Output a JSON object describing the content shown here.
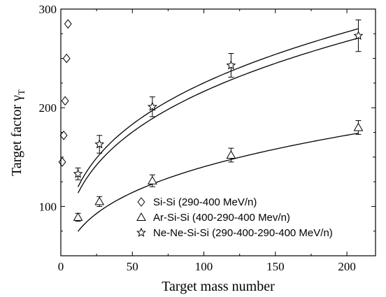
{
  "chart_data": {
    "type": "scatter",
    "title": "",
    "xlabel": "Target mass number",
    "ylabel": "Target factor γ",
    "ylabel_sub": "T",
    "xlim": [
      0,
      220
    ],
    "ylim": [
      50,
      300
    ],
    "xticks": [
      0,
      50,
      100,
      150,
      200
    ],
    "yticks": [
      100,
      200,
      300
    ],
    "legend_position": "bottom-right",
    "series": [
      {
        "name": "Si-Si (290-400 MeV/n)",
        "marker": "diamond",
        "x": [
          1,
          2,
          3,
          4,
          5
        ],
        "y": [
          145,
          172,
          207,
          250,
          285
        ],
        "err": [
          0,
          0,
          0,
          0,
          0
        ],
        "fit": false
      },
      {
        "name": "Ar-Si-Si (400-290-400 Mev/n)",
        "marker": "triangle",
        "x": [
          12,
          27,
          64,
          119,
          208
        ],
        "y": [
          89,
          105,
          126,
          152,
          180
        ],
        "err": [
          4,
          5,
          6,
          7,
          7
        ],
        "fit": {
          "a": 35.7,
          "k": 0.297
        }
      },
      {
        "name": "Ne-Ne-Si-Si (290-400-290-400 MeV/n)",
        "marker": "star",
        "x": [
          12,
          27,
          64,
          119,
          208
        ],
        "y": [
          133,
          163,
          201,
          243,
          273
        ],
        "err": [
          6,
          9,
          10,
          12,
          16
        ],
        "fit": {
          "a": 53.3,
          "k": 0.3044
        }
      }
    ],
    "fit_curves": [
      {
        "a": 35.7,
        "k": 0.297
      },
      {
        "a": 53.3,
        "k": 0.3044
      },
      {
        "a": 57.2,
        "k": 0.2976
      }
    ]
  }
}
